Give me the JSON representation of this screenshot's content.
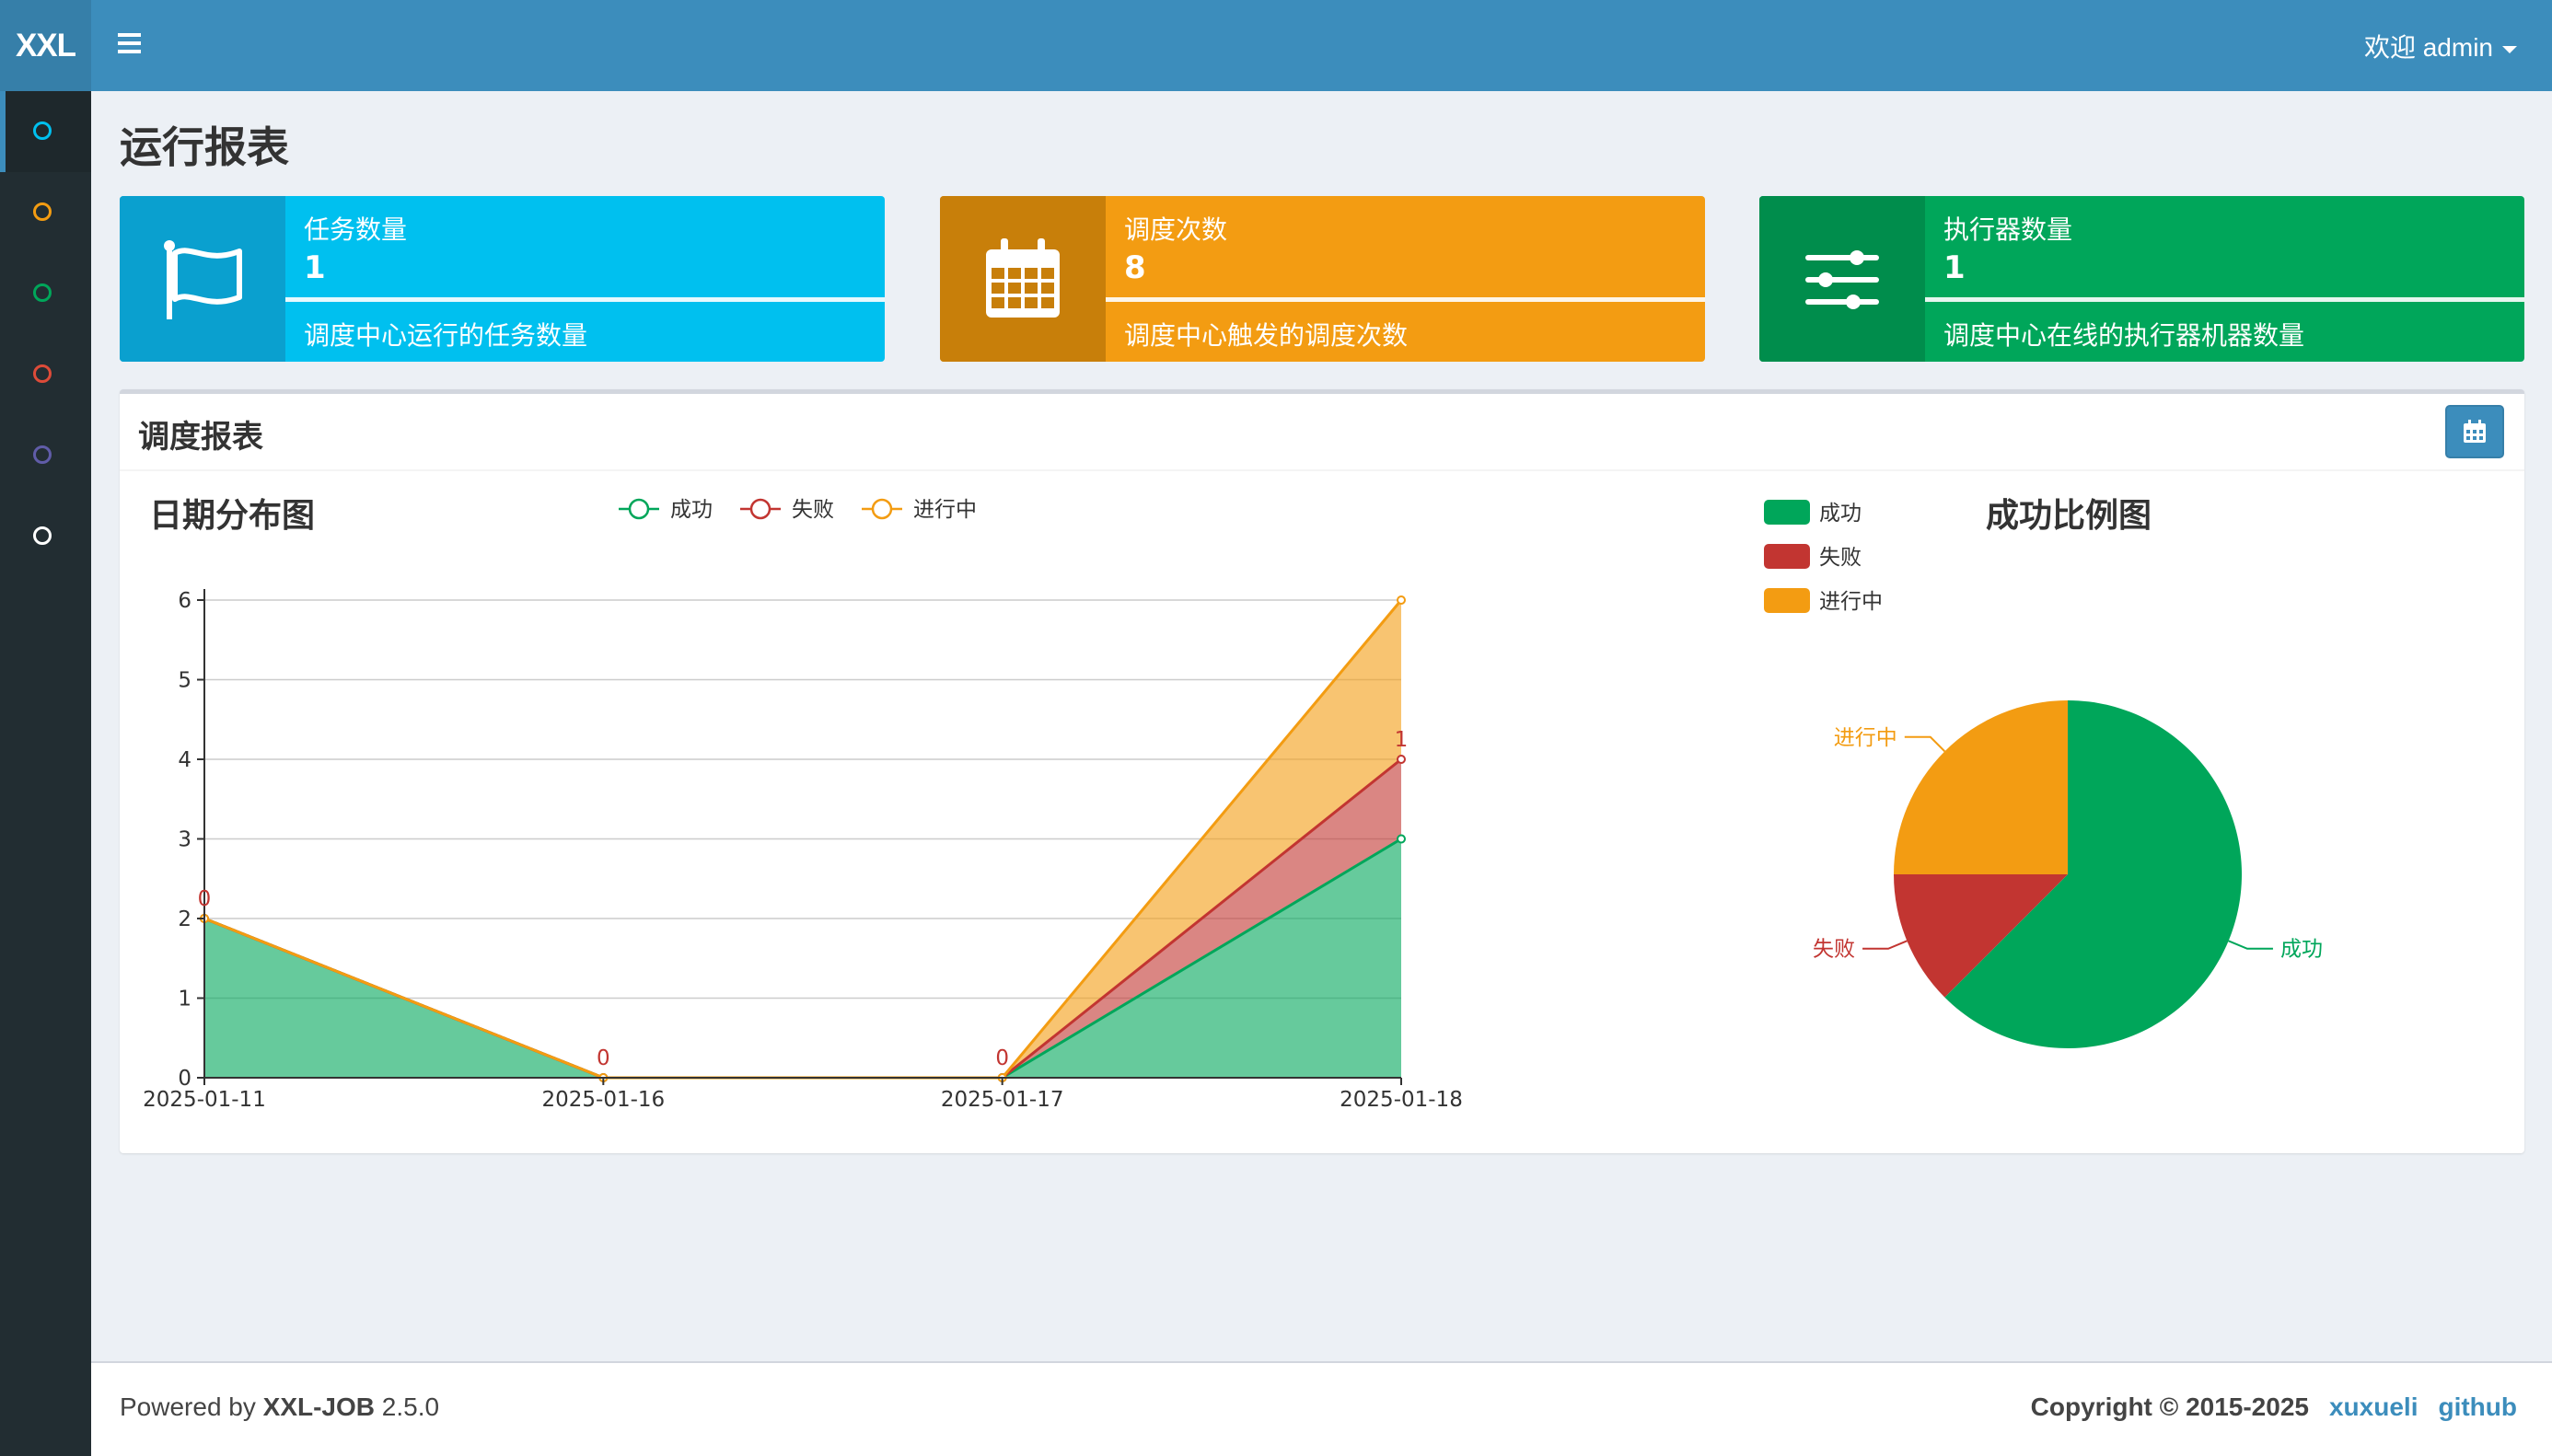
{
  "header": {
    "logo": "XXL",
    "user_greeting": "欢迎 admin"
  },
  "sidebar": {
    "items": [
      {
        "name": "sidebar-item-report",
        "color": "#00c0ef",
        "active": true
      },
      {
        "name": "sidebar-item-jobs",
        "color": "#f39c12"
      },
      {
        "name": "sidebar-item-logs",
        "color": "#00a65a"
      },
      {
        "name": "sidebar-item-executors",
        "color": "#dd4b39"
      },
      {
        "name": "sidebar-item-users",
        "color": "#605ca8"
      },
      {
        "name": "sidebar-item-help",
        "color": "#ffffff"
      }
    ]
  },
  "page": {
    "title": "运行报表"
  },
  "info_boxes": [
    {
      "label": "任务数量",
      "value": "1",
      "desc": "调度中心运行的任务数量",
      "icon": "flag-icon",
      "color": "#00c0ef",
      "dark": "#0aa0cf"
    },
    {
      "label": "调度次数",
      "value": "8",
      "desc": "调度中心触发的调度次数",
      "icon": "calendar-icon",
      "color": "#f39c12",
      "dark": "#c87f0a"
    },
    {
      "label": "执行器数量",
      "value": "1",
      "desc": "调度中心在线的执行器机器数量",
      "icon": "sliders-icon",
      "color": "#00a65a",
      "dark": "#008d4c"
    }
  ],
  "report": {
    "title": "调度报表",
    "button_icon": "calendar-icon"
  },
  "chart_data": [
    {
      "type": "area",
      "stacked": true,
      "title": "日期分布图",
      "categories": [
        "2025-01-11",
        "2025-01-16",
        "2025-01-17",
        "2025-01-18"
      ],
      "series": [
        {
          "name": "成功",
          "values": [
            2,
            0,
            0,
            3
          ],
          "color": "#00a65a"
        },
        {
          "name": "失败",
          "values": [
            0,
            0,
            0,
            1
          ],
          "color": "#c23531"
        },
        {
          "name": "进行中",
          "values": [
            0,
            0,
            0,
            2
          ],
          "color": "#f39c12"
        }
      ],
      "data_labels": [
        "0",
        "0",
        "0",
        "1"
      ],
      "ylim": [
        0,
        6
      ],
      "yticks": [
        "0",
        "1",
        "2",
        "3",
        "4",
        "5",
        "6"
      ],
      "legend": "top",
      "grid": true
    },
    {
      "type": "pie",
      "title": "成功比例图",
      "slices": [
        {
          "name": "成功",
          "value": 5,
          "color": "#00a65a"
        },
        {
          "name": "失败",
          "value": 1,
          "color": "#c23531"
        },
        {
          "name": "进行中",
          "value": 2,
          "color": "#f39c12"
        }
      ],
      "legend": "top-left"
    }
  ],
  "footer": {
    "powered_prefix": "Powered by ",
    "powered_name": "XXL-JOB",
    "version": " 2.5.0",
    "copyright": "Copyright © 2015-2025",
    "link1": "xuxueli",
    "link2": "github"
  }
}
